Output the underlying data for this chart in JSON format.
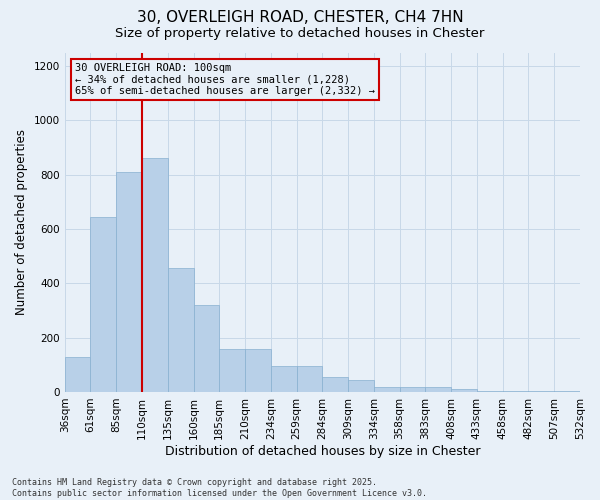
{
  "title": "30, OVERLEIGH ROAD, CHESTER, CH4 7HN",
  "subtitle": "Size of property relative to detached houses in Chester",
  "xlabel": "Distribution of detached houses by size in Chester",
  "ylabel": "Number of detached properties",
  "bar_values": [
    130,
    645,
    810,
    860,
    455,
    320,
    160,
    160,
    95,
    95,
    55,
    45,
    20,
    18,
    20,
    10,
    5,
    3,
    2,
    5
  ],
  "bin_labels": [
    "36sqm",
    "61sqm",
    "85sqm",
    "110sqm",
    "135sqm",
    "160sqm",
    "185sqm",
    "210sqm",
    "234sqm",
    "259sqm",
    "284sqm",
    "309sqm",
    "334sqm",
    "358sqm",
    "383sqm",
    "408sqm",
    "433sqm",
    "458sqm",
    "482sqm",
    "507sqm",
    "532sqm"
  ],
  "bar_color": "#b8d0e8",
  "bar_edge_color": "#88b0d0",
  "grid_color": "#c8d8e8",
  "background_color": "#e8f0f8",
  "vline_color": "#cc0000",
  "vline_bin_index": 3,
  "annotation_text": "30 OVERLEIGH ROAD: 100sqm\n← 34% of detached houses are smaller (1,228)\n65% of semi-detached houses are larger (2,332) →",
  "annotation_box_color": "#cc0000",
  "ylim": [
    0,
    1250
  ],
  "yticks": [
    0,
    200,
    400,
    600,
    800,
    1000,
    1200
  ],
  "footnote": "Contains HM Land Registry data © Crown copyright and database right 2025.\nContains public sector information licensed under the Open Government Licence v3.0.",
  "title_fontsize": 11,
  "subtitle_fontsize": 9.5,
  "xlabel_fontsize": 9,
  "ylabel_fontsize": 8.5,
  "tick_fontsize": 7.5,
  "annotation_fontsize": 7.5,
  "footnote_fontsize": 6
}
